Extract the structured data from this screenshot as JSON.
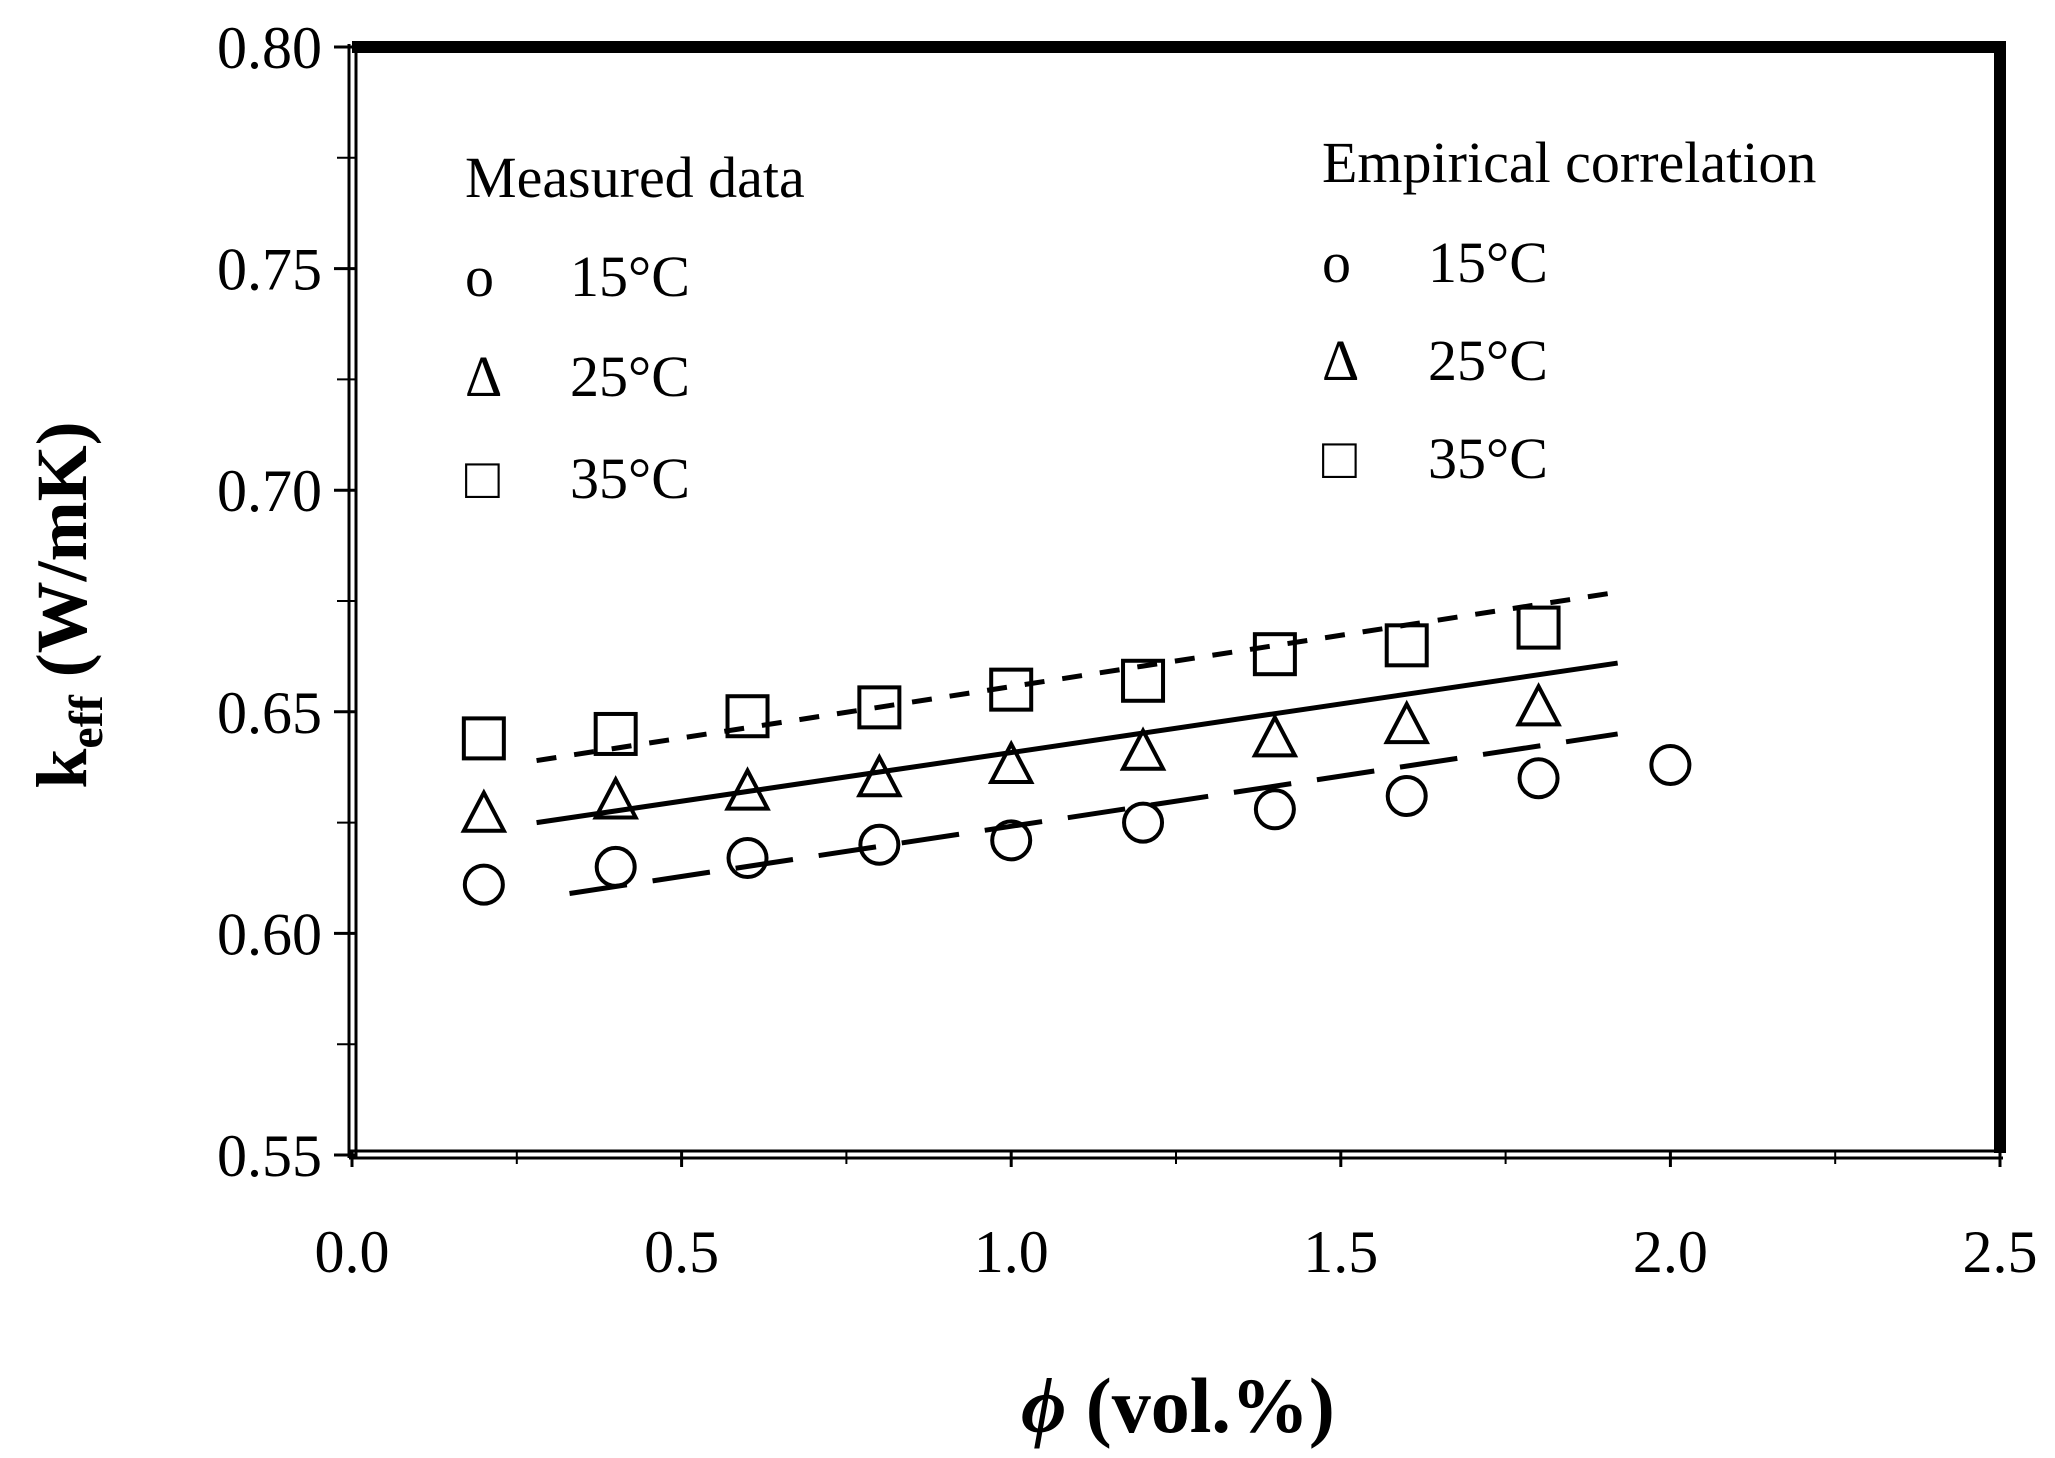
{
  "chart_data": {
    "type": "scatter",
    "x_label_symbol": "ϕ",
    "x_label_rest": " (vol.%)",
    "y_label_main": "k",
    "y_label_sub": "eff",
    "y_label_rest": " (W/mK)",
    "xlim": [
      0.0,
      2.5
    ],
    "ylim": [
      0.55,
      0.8
    ],
    "x_ticks": [
      "0.0",
      "0.5",
      "1.0",
      "1.5",
      "2.0",
      "2.5"
    ],
    "x_tick_values": [
      0.0,
      0.5,
      1.0,
      1.5,
      2.0,
      2.5
    ],
    "y_ticks": [
      "0.55",
      "0.60",
      "0.65",
      "0.70",
      "0.75",
      "0.80"
    ],
    "y_tick_values": [
      0.55,
      0.6,
      0.65,
      0.7,
      0.75,
      0.8
    ],
    "measured": [
      {
        "name": "15°C",
        "marker": "circle",
        "x": [
          0.2,
          0.4,
          0.6,
          0.8,
          1.0,
          1.2,
          1.4,
          1.6,
          1.8,
          2.0
        ],
        "y": [
          0.611,
          0.615,
          0.617,
          0.62,
          0.621,
          0.625,
          0.628,
          0.631,
          0.635,
          0.638
        ]
      },
      {
        "name": "25°C",
        "marker": "triangle",
        "x": [
          0.2,
          0.4,
          0.6,
          0.8,
          1.0,
          1.2,
          1.4,
          1.6,
          1.8
        ],
        "y": [
          0.627,
          0.63,
          0.632,
          0.635,
          0.638,
          0.641,
          0.644,
          0.647,
          0.651
        ]
      },
      {
        "name": "35°C",
        "marker": "square",
        "x": [
          0.2,
          0.4,
          0.6,
          0.8,
          1.0,
          1.2,
          1.4,
          1.6,
          1.8
        ],
        "y": [
          0.644,
          0.645,
          0.649,
          0.651,
          0.655,
          0.657,
          0.663,
          0.665,
          0.669
        ]
      }
    ],
    "correlation": [
      {
        "name": "15°C",
        "dash": "long",
        "x": [
          0.33,
          1.92
        ],
        "y": [
          0.609,
          0.645
        ]
      },
      {
        "name": "25°C",
        "dash": "solid",
        "x": [
          0.28,
          1.92
        ],
        "y": [
          0.625,
          0.661
        ]
      },
      {
        "name": "35°C",
        "dash": "short",
        "x": [
          0.28,
          1.92
        ],
        "y": [
          0.639,
          0.677
        ]
      }
    ],
    "legend_measured": {
      "title": "Measured data",
      "entries": [
        {
          "symbol": "o",
          "label": "15°C"
        },
        {
          "symbol": "Δ",
          "label": "25°C"
        },
        {
          "symbol": "□",
          "label": "35°C"
        }
      ]
    },
    "legend_correlation": {
      "title": "Empirical correlation",
      "entries": [
        {
          "symbol": "o",
          "label": "15°C"
        },
        {
          "symbol": "Δ",
          "label": "25°C"
        },
        {
          "symbol": "□",
          "label": "35°C"
        }
      ]
    }
  }
}
